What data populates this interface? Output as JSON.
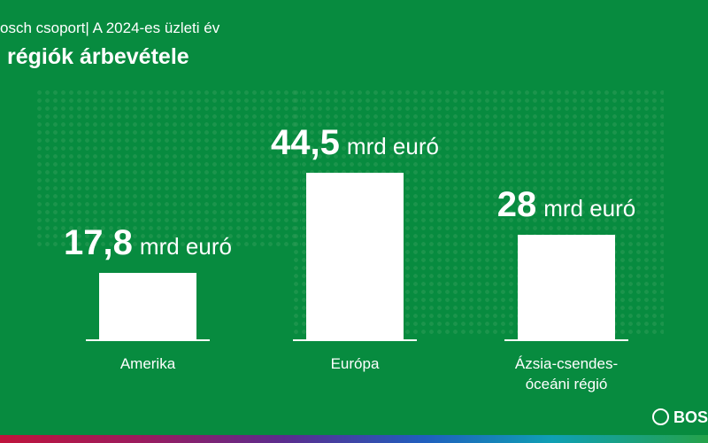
{
  "chart_data": {
    "type": "bar",
    "subtitle": "osch csoport| A 2024-es üzleti év",
    "title": "régiók árbevétele",
    "categories": [
      "Amerika",
      "Európa",
      "Ázsia-csendes-óceáni régió"
    ],
    "values": [
      17.8,
      44.5,
      28
    ],
    "value_labels": [
      "17,8",
      "44,5",
      "28"
    ],
    "unit": "mrd euró",
    "color": "#ffffff",
    "logo": "BOS"
  }
}
